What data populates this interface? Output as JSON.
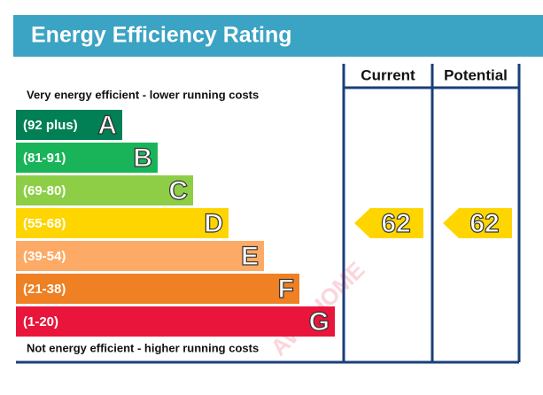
{
  "header": {
    "title": "Energy Efficiency Rating"
  },
  "columns": [
    "Current",
    "Potential"
  ],
  "top_note": "Very energy efficient - lower running costs",
  "bottom_note": "Not energy efficient - higher running costs",
  "bands": [
    {
      "range": "(92 plus)",
      "letter": "A",
      "color": "#008054"
    },
    {
      "range": "(81-91)",
      "letter": "B",
      "color": "#19b459"
    },
    {
      "range": "(69-80)",
      "letter": "C",
      "color": "#8dce46"
    },
    {
      "range": "(55-68)",
      "letter": "D",
      "color": "#ffd500"
    },
    {
      "range": "(39-54)",
      "letter": "E",
      "color": "#fcaa65"
    },
    {
      "range": "(21-38)",
      "letter": "F",
      "color": "#ef8023"
    },
    {
      "range": "(1-20)",
      "letter": "G",
      "color": "#e9153b"
    }
  ],
  "ratings": [
    {
      "value": "62",
      "band": 3
    },
    {
      "value": "62",
      "band": 3
    }
  ],
  "watermark": "AWEHOME"
}
